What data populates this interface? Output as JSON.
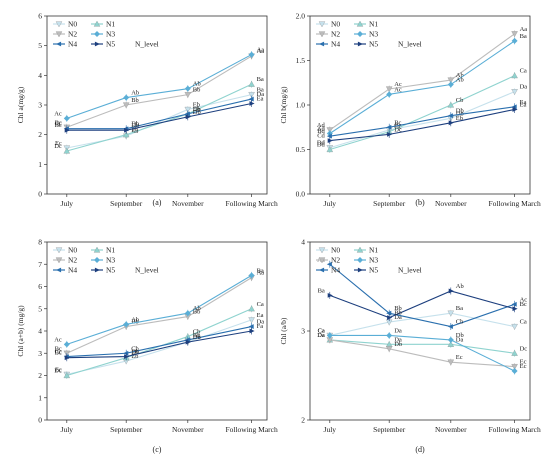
{
  "chart_data": [
    {
      "type": "line",
      "panel_label": "(a)",
      "ylabel": "Chl a(mg/g)",
      "ylim": [
        0,
        6
      ],
      "yticks": [
        0,
        1,
        2,
        3,
        4,
        5,
        6
      ],
      "categories": [
        "July",
        "September",
        "November",
        "Following March"
      ],
      "legend_title": "N_level",
      "series": [
        {
          "name": "N0",
          "values": [
            1.55,
            1.95,
            2.85,
            3.35
          ],
          "labels": [
            "Ec",
            "Eb",
            "Eb",
            "Ba"
          ]
        },
        {
          "name": "N1",
          "values": [
            1.45,
            2.0,
            2.7,
            3.7
          ],
          "labels": [
            "Dc",
            "Eb",
            "Eb",
            "Ba"
          ]
        },
        {
          "name": "N2",
          "values": [
            2.25,
            3.0,
            3.35,
            4.65
          ],
          "labels": [
            "Bc",
            "Bb",
            "Bb",
            "Aa"
          ]
        },
        {
          "name": "N3",
          "values": [
            2.55,
            3.25,
            3.55,
            4.7
          ],
          "labels": [
            "Ac",
            "Ab",
            "Ab",
            "Aa"
          ]
        },
        {
          "name": "N4",
          "values": [
            2.2,
            2.2,
            2.7,
            3.2
          ],
          "labels": [
            "Cc",
            "Db",
            "Db",
            "Da"
          ]
        },
        {
          "name": "N5",
          "values": [
            2.15,
            2.15,
            2.6,
            3.05
          ],
          "labels": [
            "Bc",
            "Db",
            "Db",
            "Ea"
          ]
        }
      ]
    },
    {
      "type": "line",
      "panel_label": "(b)",
      "ylabel": "Chl b(mg/g)",
      "ylim": [
        0,
        2.0
      ],
      "yticks": [
        0.0,
        0.5,
        1.0,
        1.5,
        2.0
      ],
      "categories": [
        "July",
        "September",
        "November",
        "Following March"
      ],
      "legend_title": "N_level",
      "series": [
        {
          "name": "N0",
          "values": [
            0.52,
            0.72,
            0.85,
            1.15
          ],
          "labels": [
            "Dd",
            "Cc",
            "Db",
            "Da"
          ]
        },
        {
          "name": "N1",
          "values": [
            0.5,
            0.7,
            1.0,
            1.33
          ],
          "labels": [
            "Dd",
            "Cc",
            "Cb",
            "Ca"
          ]
        },
        {
          "name": "N2",
          "values": [
            0.72,
            1.18,
            1.28,
            1.8
          ],
          "labels": [
            "Ad",
            "Ac",
            "Ab",
            "Aa"
          ]
        },
        {
          "name": "N3",
          "values": [
            0.68,
            1.12,
            1.23,
            1.72
          ],
          "labels": [
            "Ad",
            "Ac",
            "Ab",
            "Ba"
          ]
        },
        {
          "name": "N4",
          "values": [
            0.65,
            0.75,
            0.88,
            0.98
          ],
          "labels": [
            "Bd",
            "Bc",
            "Db",
            "Ea"
          ]
        },
        {
          "name": "N5",
          "values": [
            0.6,
            0.67,
            0.8,
            0.95
          ],
          "labels": [
            "Cd",
            "Dc",
            "Eb",
            "Ea"
          ]
        }
      ]
    },
    {
      "type": "line",
      "panel_label": "(c)",
      "ylabel": "Chl (a+b) (mg/g)",
      "ylim": [
        0,
        8
      ],
      "yticks": [
        0,
        1,
        2,
        3,
        4,
        5,
        6,
        7,
        8
      ],
      "categories": [
        "July",
        "September",
        "November",
        "Following March"
      ],
      "legend_title": "N_level",
      "series": [
        {
          "name": "N0",
          "values": [
            2.05,
            2.65,
            3.5,
            4.5
          ],
          "labels": [
            "Ec",
            "Eb",
            "Db",
            "Ea"
          ]
        },
        {
          "name": "N1",
          "values": [
            2.0,
            2.8,
            3.75,
            5.0
          ],
          "labels": [
            "Dc",
            "Eb",
            "Cb",
            "Ca"
          ]
        },
        {
          "name": "N2",
          "values": [
            3.0,
            4.2,
            4.65,
            6.4
          ],
          "labels": [
            "Bc",
            "Bb",
            "Bb",
            "Aa"
          ]
        },
        {
          "name": "N3",
          "values": [
            3.4,
            4.3,
            4.8,
            6.5
          ],
          "labels": [
            "Ac",
            "Ab",
            "Ab",
            "Ba"
          ]
        },
        {
          "name": "N4",
          "values": [
            2.85,
            3.0,
            3.6,
            4.2
          ],
          "labels": [
            "Cc",
            "Cb",
            "Bb",
            "Da"
          ]
        },
        {
          "name": "N5",
          "values": [
            2.8,
            2.85,
            3.5,
            4.0
          ],
          "labels": [
            "Bc",
            "Db",
            "Db",
            "Fa"
          ]
        }
      ]
    },
    {
      "type": "line",
      "panel_label": "(d)",
      "ylabel": "Chl (a/b)",
      "ylim": [
        2,
        4
      ],
      "yticks": [
        2,
        3,
        4
      ],
      "categories": [
        "July",
        "September",
        "November",
        "Following March"
      ],
      "legend_title": "N_level",
      "series": [
        {
          "name": "N0",
          "values": [
            2.95,
            3.1,
            3.2,
            3.05
          ],
          "labels": [
            "Ca",
            "Da",
            "Ba",
            "Ca"
          ]
        },
        {
          "name": "N1",
          "values": [
            2.9,
            2.85,
            2.85,
            2.75
          ],
          "labels": [
            "Da",
            "Da",
            "Da",
            "Dc"
          ]
        },
        {
          "name": "N2",
          "values": [
            2.9,
            2.8,
            2.65,
            2.6
          ],
          "labels": [
            "Da",
            "Db",
            "Ec",
            "Ec"
          ]
        },
        {
          "name": "N3",
          "values": [
            2.95,
            2.95,
            2.9,
            2.55
          ],
          "labels": [
            "Ca",
            "Da",
            "Db",
            "Ec"
          ]
        },
        {
          "name": "N4",
          "values": [
            3.75,
            3.2,
            3.05,
            3.3
          ],
          "labels": [
            "Aa",
            "Bb",
            "Cb",
            "Ac"
          ]
        },
        {
          "name": "N5",
          "values": [
            3.4,
            3.15,
            3.45,
            3.25
          ],
          "labels": [
            "Ba",
            "Bb",
            "Ab",
            "Bc"
          ]
        }
      ]
    }
  ],
  "series_colors": [
    "#c6e1ec",
    "#8fd3cf",
    "#bcbcbc",
    "#5aaed6",
    "#2a6fae",
    "#1d3f7e"
  ],
  "series_markers": [
    "triangle-down",
    "triangle-up",
    "triangle-down",
    "diamond",
    "arrow-left",
    "arrow-right"
  ]
}
